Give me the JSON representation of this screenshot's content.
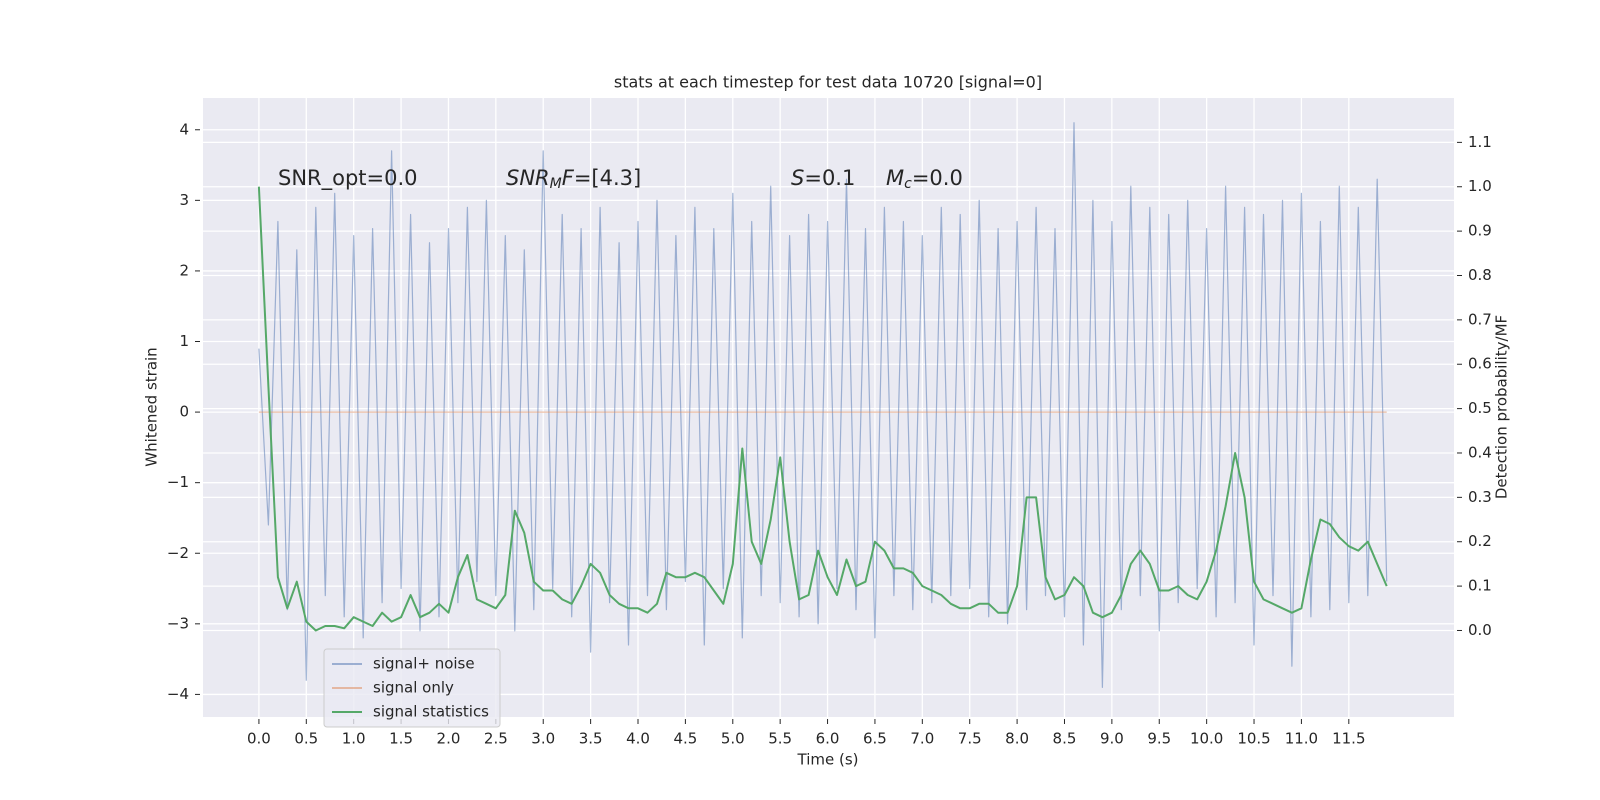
{
  "chart_data": {
    "type": "line",
    "title": "stats at each timestep for test data 10720 [signal=0]",
    "xlabel": "Time (s)",
    "ylabel": "Whitened strain",
    "y2label": "Detection probability/MF",
    "grid": true,
    "legend": "lower left",
    "xlim": [
      -0.59,
      12.61
    ],
    "ylim": [
      -4.32,
      4.45
    ],
    "y2lim": [
      -0.195,
      1.2
    ],
    "xticks": [
      {
        "value": 0,
        "label": "0.0"
      },
      0.5,
      {
        "value": 1,
        "label": "1.0"
      },
      1.5,
      {
        "value": 2,
        "label": "2.0"
      },
      2.5,
      {
        "value": 3,
        "label": "3.0"
      },
      3.5,
      {
        "value": 4,
        "label": "4.0"
      },
      4.5,
      {
        "value": 5,
        "label": "5.0"
      },
      5.5,
      {
        "value": 6,
        "label": "6.0"
      },
      6.5,
      {
        "value": 7,
        "label": "7.0"
      },
      7.5,
      {
        "value": 8,
        "label": "8.0"
      },
      8.5,
      {
        "value": 9,
        "label": "9.0"
      },
      9.5,
      {
        "value": 10,
        "label": "10.0"
      },
      10.5,
      {
        "value": 11,
        "label": "11.0"
      },
      11.5
    ],
    "yticks": [
      {
        "value": -4,
        "label": "−4"
      },
      {
        "value": -3,
        "label": "−3"
      },
      {
        "value": -2,
        "label": "−2"
      },
      {
        "value": -1,
        "label": "−1"
      },
      0,
      1,
      2,
      3,
      4
    ],
    "y2ticks": [
      {
        "value": 0,
        "label": "0.0"
      },
      0.1,
      0.2,
      0.3,
      0.4,
      0.5,
      0.6,
      0.7,
      0.8,
      0.9,
      {
        "value": 1,
        "label": "1.0"
      },
      1.1
    ],
    "annotations": [
      [
        {
          "text": "SNR_opt=0.0",
          "style": "normal"
        }
      ],
      [
        {
          "text": "SNR",
          "style": "italic"
        },
        {
          "text": "M",
          "style": "sub"
        },
        {
          "text": "F",
          "style": "italic"
        },
        {
          "text": "=[4.3]",
          "style": "normal"
        }
      ],
      [
        {
          "text": "S",
          "style": "italic"
        },
        {
          "text": "=0.1",
          "style": "normal"
        }
      ],
      [
        {
          "text": "M",
          "style": "italic"
        },
        {
          "text": "c",
          "style": "sub"
        },
        {
          "text": "=0.0",
          "style": "normal"
        }
      ]
    ],
    "x": [
      0,
      0.1,
      0.2,
      0.3,
      0.4,
      0.5,
      0.6,
      0.7,
      0.8,
      0.9,
      1,
      1.1,
      1.2,
      1.3,
      1.4,
      1.5,
      1.6,
      1.7,
      1.8,
      1.9,
      2,
      2.1,
      2.2,
      2.3,
      2.4,
      2.5,
      2.6,
      2.7,
      2.8,
      2.9,
      3,
      3.1,
      3.2,
      3.3,
      3.4,
      3.5,
      3.6,
      3.7,
      3.8,
      3.9,
      4,
      4.1,
      4.2,
      4.3,
      4.4,
      4.5,
      4.6,
      4.7,
      4.8,
      4.9,
      5,
      5.1,
      5.2,
      5.3,
      5.4,
      5.5,
      5.6,
      5.7,
      5.8,
      5.9,
      6,
      6.1,
      6.2,
      6.3,
      6.4,
      6.5,
      6.6,
      6.7,
      6.8,
      6.9,
      7,
      7.1,
      7.2,
      7.3,
      7.4,
      7.5,
      7.6,
      7.7,
      7.8,
      7.9,
      8,
      8.1,
      8.2,
      8.3,
      8.4,
      8.5,
      8.6,
      8.7,
      8.8,
      8.9,
      9,
      9.1,
      9.2,
      9.3,
      9.4,
      9.5,
      9.6,
      9.7,
      9.8,
      9.9,
      10,
      10.1,
      10.2,
      10.3,
      10.4,
      10.5,
      10.6,
      10.7,
      10.8,
      10.9,
      11,
      11.1,
      11.2,
      11.3,
      11.4,
      11.5,
      11.6,
      11.7,
      11.8,
      11.9
    ],
    "series": [
      {
        "name": "signal+ noise",
        "color": "#4c72b0",
        "alpha": 0.5,
        "values": [
          0.9,
          -1.6,
          2.7,
          -2.8,
          2.3,
          -3.8,
          2.9,
          -2.6,
          3.1,
          -2.9,
          2.5,
          -3.2,
          2.6,
          -2.7,
          3.7,
          -2.5,
          2.8,
          -3.1,
          2.4,
          -2.9,
          2.6,
          -2.7,
          2.9,
          -2.4,
          3.0,
          -2.6,
          2.5,
          -3.1,
          2.3,
          -2.8,
          3.7,
          -2.5,
          2.8,
          -2.9,
          2.6,
          -3.4,
          2.9,
          -2.7,
          2.4,
          -3.3,
          2.7,
          -2.6,
          3.0,
          -2.8,
          2.5,
          -2.4,
          2.9,
          -3.3,
          2.6,
          -2.5,
          3.1,
          -3.2,
          2.7,
          -2.6,
          3.2,
          -2.7,
          2.5,
          -2.9,
          2.8,
          -3.0,
          2.7,
          -2.5,
          3.3,
          -2.8,
          2.6,
          -3.2,
          2.9,
          -2.6,
          2.7,
          -2.8,
          2.5,
          -2.7,
          2.9,
          -2.6,
          2.8,
          -2.5,
          3.0,
          -2.9,
          2.6,
          -3.0,
          2.7,
          -2.8,
          2.9,
          -2.6,
          2.6,
          -2.9,
          4.1,
          -3.3,
          3.0,
          -3.9,
          2.7,
          -2.8,
          3.2,
          -2.6,
          2.9,
          -3.1,
          2.8,
          -2.7,
          3.0,
          -2.5,
          2.6,
          -2.9,
          3.2,
          -2.7,
          2.9,
          -3.3,
          2.8,
          -2.6,
          3.0,
          -3.6,
          3.1,
          -2.9,
          2.7,
          -2.8,
          3.2,
          -2.7,
          2.9,
          -2.6,
          3.3,
          -2.4
        ]
      },
      {
        "name": "signal only",
        "color": "#dd8452",
        "alpha": 0.5,
        "values": [
          0,
          0,
          0,
          0,
          0,
          0,
          0,
          0,
          0,
          0,
          0,
          0,
          0,
          0,
          0,
          0,
          0,
          0,
          0,
          0,
          0,
          0,
          0,
          0,
          0,
          0,
          0,
          0,
          0,
          0,
          0,
          0,
          0,
          0,
          0,
          0,
          0,
          0,
          0,
          0,
          0,
          0,
          0,
          0,
          0,
          0,
          0,
          0,
          0,
          0,
          0,
          0,
          0,
          0,
          0,
          0,
          0,
          0,
          0,
          0,
          0,
          0,
          0,
          0,
          0,
          0,
          0,
          0,
          0,
          0,
          0,
          0,
          0,
          0,
          0,
          0,
          0,
          0,
          0,
          0,
          0,
          0,
          0,
          0,
          0,
          0,
          0,
          0,
          0,
          0,
          0,
          0,
          0,
          0,
          0,
          0,
          0,
          0,
          0,
          0,
          0,
          0,
          0,
          0,
          0,
          0,
          0,
          0,
          0,
          0,
          0,
          0,
          0,
          0,
          0,
          0,
          0,
          0,
          0,
          0
        ]
      },
      {
        "name": "signal statistics",
        "color": "#55a868",
        "alpha": 1,
        "axis": "y2",
        "values": [
          1.0,
          0.55,
          0.12,
          0.05,
          0.11,
          0.02,
          0.0,
          0.01,
          0.01,
          0.005,
          0.03,
          0.02,
          0.01,
          0.04,
          0.02,
          0.03,
          0.08,
          0.03,
          0.04,
          0.06,
          0.04,
          0.12,
          0.17,
          0.07,
          0.06,
          0.05,
          0.08,
          0.27,
          0.22,
          0.11,
          0.09,
          0.09,
          0.07,
          0.06,
          0.1,
          0.15,
          0.13,
          0.08,
          0.06,
          0.05,
          0.05,
          0.04,
          0.06,
          0.13,
          0.12,
          0.12,
          0.13,
          0.12,
          0.09,
          0.06,
          0.15,
          0.41,
          0.2,
          0.15,
          0.25,
          0.39,
          0.2,
          0.07,
          0.08,
          0.18,
          0.12,
          0.08,
          0.16,
          0.1,
          0.11,
          0.2,
          0.18,
          0.14,
          0.14,
          0.13,
          0.1,
          0.09,
          0.08,
          0.06,
          0.05,
          0.05,
          0.06,
          0.06,
          0.04,
          0.04,
          0.1,
          0.3,
          0.3,
          0.12,
          0.07,
          0.08,
          0.12,
          0.1,
          0.04,
          0.03,
          0.04,
          0.08,
          0.15,
          0.18,
          0.15,
          0.09,
          0.09,
          0.1,
          0.08,
          0.07,
          0.11,
          0.18,
          0.28,
          0.4,
          0.3,
          0.11,
          0.07,
          0.06,
          0.05,
          0.04,
          0.05,
          0.16,
          0.25,
          0.24,
          0.21,
          0.19,
          0.18,
          0.2,
          0.15,
          0.1
        ]
      }
    ]
  }
}
